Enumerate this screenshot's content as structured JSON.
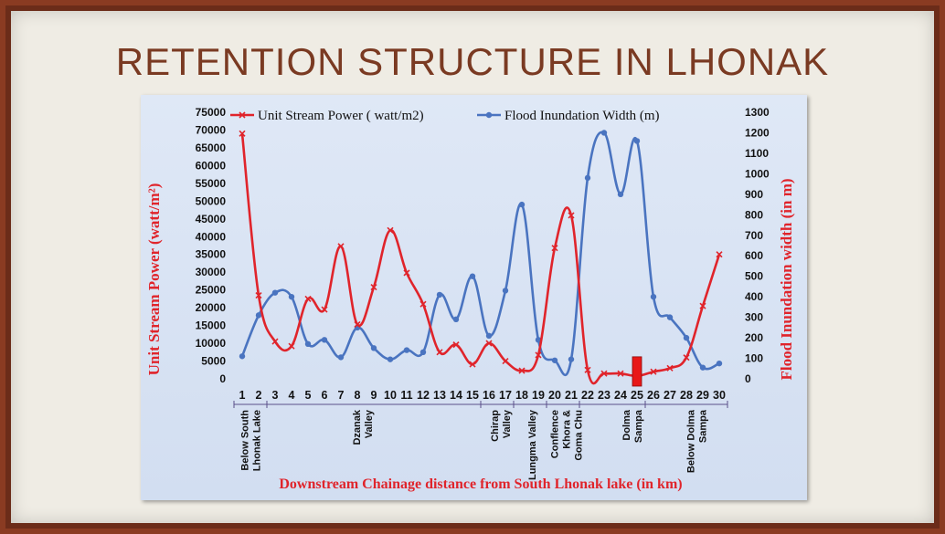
{
  "slide": {
    "title": "RETENTION STRUCTURE IN LHONAK"
  },
  "chart_data": {
    "type": "line",
    "x": [
      1,
      2,
      3,
      4,
      5,
      6,
      7,
      8,
      9,
      10,
      11,
      12,
      13,
      14,
      15,
      16,
      17,
      18,
      19,
      20,
      21,
      22,
      23,
      24,
      25,
      26,
      27,
      28,
      29,
      30
    ],
    "series": [
      {
        "name": "Unit Stream Power ( watt/m2)",
        "axis": "left",
        "color": "#e0242b",
        "values": [
          69000,
          23500,
          10500,
          9200,
          22500,
          19500,
          37300,
          15300,
          25800,
          41800,
          29800,
          21000,
          7500,
          9600,
          4100,
          10000,
          5000,
          2300,
          6700,
          36800,
          46000,
          2500,
          1500,
          1500,
          800,
          2000,
          3000,
          6000,
          20500,
          35000
        ]
      },
      {
        "name": "Flood Inundation Width (m)",
        "axis": "right",
        "color": "#4a74c0",
        "values": [
          110,
          310,
          420,
          400,
          170,
          190,
          105,
          250,
          150,
          95,
          140,
          130,
          410,
          290,
          500,
          210,
          430,
          850,
          190,
          90,
          95,
          980,
          1200,
          900,
          1160,
          400,
          300,
          200,
          55,
          75
        ]
      }
    ],
    "y_left": {
      "label": "Unit Stream Power (watt/m²)",
      "min": 0,
      "max": 75000,
      "step": 5000,
      "ticks": [
        "0",
        "5000",
        "10000",
        "15000",
        "20000",
        "25000",
        "30000",
        "35000",
        "40000",
        "45000",
        "50000",
        "55000",
        "60000",
        "65000",
        "70000",
        "75000"
      ]
    },
    "y_right": {
      "label": "Flood Inundation width (in m)",
      "min": 0,
      "max": 1300,
      "step": 100,
      "ticks": [
        "0",
        "100",
        "200",
        "300",
        "400",
        "500",
        "600",
        "700",
        "800",
        "900",
        "1000",
        "1100",
        "1200",
        "1300"
      ]
    },
    "xlabel": "Downstream Chainage distance from South Lhonak lake (in km)",
    "x_ticks": [
      "1",
      "2",
      "3",
      "4",
      "5",
      "6",
      "7",
      "8",
      "9",
      "10",
      "11",
      "12",
      "13",
      "14",
      "15",
      "16",
      "17",
      "18",
      "19",
      "20",
      "21",
      "22",
      "23",
      "24",
      "25",
      "26",
      "27",
      "28",
      "29",
      "30"
    ],
    "grid": false,
    "legend": "top",
    "regions": [
      {
        "label": "Below South Lhonak Lake",
        "from": 0.5,
        "to": 2.5
      },
      {
        "label": "Dzanak Valley",
        "from": 2.5,
        "to": 15.5
      },
      {
        "label": "Chirap Valley",
        "from": 15.5,
        "to": 17.5
      },
      {
        "label": "Lungma Valley",
        "from": 17.5,
        "to": 19.5
      },
      {
        "label": "Conflence Khora & Goma Chu",
        "from": 19.5,
        "to": 21.5
      },
      {
        "label": "Dolma Sampa",
        "from": 21.5,
        "to": 25.5
      },
      {
        "label": "Below Dolma Sampa",
        "from": 25.5,
        "to": 30.5
      }
    ],
    "marker": {
      "label": "retention structure",
      "x": 25,
      "color": "#e81818"
    }
  }
}
